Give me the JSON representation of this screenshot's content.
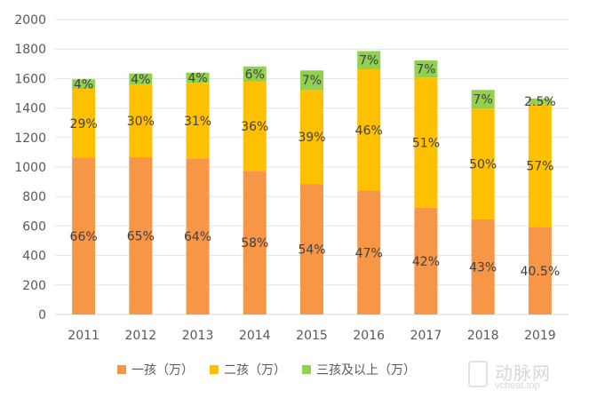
{
  "chart_data": {
    "type": "bar",
    "stacked": true,
    "title": "",
    "xlabel": "",
    "ylabel": "",
    "ylim": [
      0,
      2000
    ],
    "yticks": [
      0,
      200,
      400,
      600,
      800,
      1000,
      1200,
      1400,
      1600,
      1800,
      2000
    ],
    "grid": true,
    "legend_position": "bottom",
    "categories": [
      "2011",
      "2012",
      "2013",
      "2014",
      "2015",
      "2016",
      "2017",
      "2018",
      "2019"
    ],
    "series": [
      {
        "name": "一孩（万）",
        "color": "#F79646",
        "values": [
          1063,
          1066,
          1058,
          974,
          885,
          840,
          724,
          645,
          593
        ],
        "labels": [
          "66%",
          "65%",
          "64%",
          "58%",
          "54%",
          "47%",
          "42%",
          "43%",
          "40.5%"
        ]
      },
      {
        "name": "二孩（万）",
        "color": "#FFC000",
        "values": [
          467,
          492,
          513,
          605,
          639,
          823,
          883,
          751,
          835
        ],
        "labels": [
          "29%",
          "30%",
          "31%",
          "36%",
          "39%",
          "46%",
          "51%",
          "50%",
          "57%"
        ]
      },
      {
        "name": "三孩及以上（万）",
        "color": "#92D050",
        "values": [
          65,
          77,
          69,
          103,
          131,
          123,
          116,
          127,
          37
        ],
        "labels": [
          "4%",
          "4%",
          "4%",
          "6%",
          "7%",
          "7%",
          "7%",
          "7%",
          "2.5%"
        ]
      }
    ]
  },
  "watermark": {
    "cn": "动脉网",
    "en": "vcbeat.top"
  }
}
